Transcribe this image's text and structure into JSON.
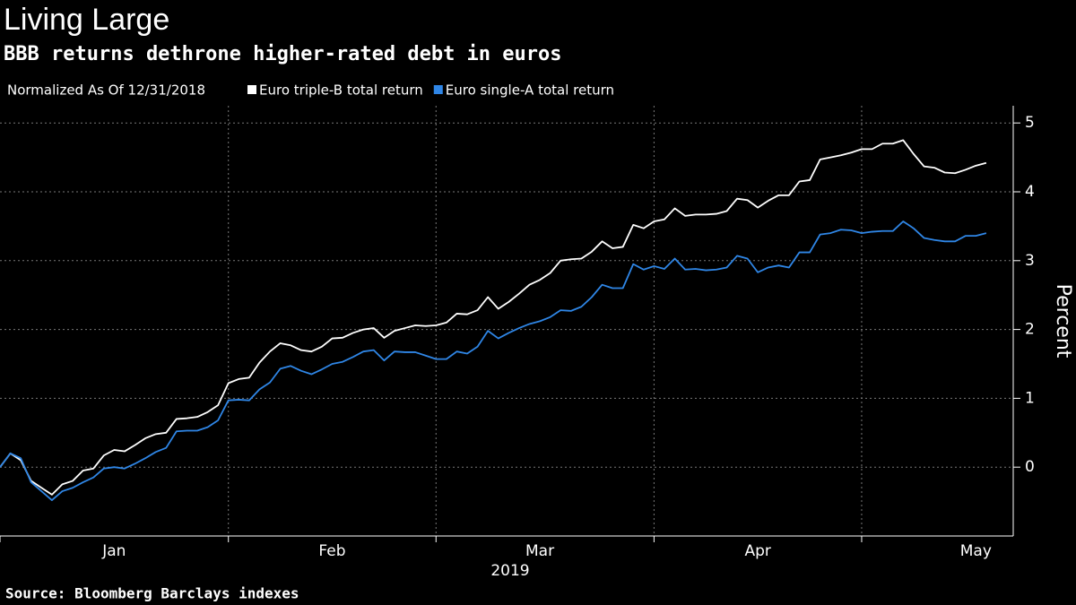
{
  "chart_data": {
    "type": "line",
    "title": "Living Large",
    "subtitle": "BBB returns dethrone higher-rated debt in euros",
    "legend_note": "Normalized As Of 12/31/2018",
    "ylabel": "Percent",
    "xlabel": "2019",
    "source": "Source: Bloomberg Barclays indexes",
    "categories": [
      null,
      null,
      null,
      null,
      null,
      null,
      null,
      null,
      null,
      null,
      null,
      "Jan",
      null,
      null,
      null,
      null,
      null,
      null,
      null,
      null,
      null,
      null,
      null,
      null,
      null,
      null,
      null,
      null,
      null,
      null,
      null,
      null,
      "Feb",
      null,
      null,
      null,
      null,
      null,
      null,
      null,
      null,
      null,
      null,
      null,
      null,
      null,
      null,
      null,
      null,
      null,
      null,
      null,
      "Mar",
      null,
      null,
      null,
      null,
      null,
      null,
      null,
      null,
      null,
      null,
      null,
      null,
      null,
      null,
      null,
      null,
      null,
      null,
      null,
      null,
      "Apr",
      null,
      null,
      null,
      null,
      null,
      null,
      null,
      null,
      null,
      null,
      null,
      null,
      null,
      null,
      null,
      null,
      null,
      null,
      null,
      null,
      "May",
      null
    ],
    "series": [
      {
        "name": "Euro triple-B total return",
        "color": "#ffffff",
        "values": [
          0,
          0.2,
          0.1,
          -0.2,
          -0.3,
          -0.4,
          -0.25,
          -0.2,
          -0.05,
          -0.02,
          0.17,
          0.25,
          0.23,
          0.32,
          0.42,
          0.48,
          0.5,
          0.7,
          0.71,
          0.73,
          0.8,
          0.9,
          1.22,
          1.28,
          1.3,
          1.52,
          1.68,
          1.8,
          1.77,
          1.7,
          1.68,
          1.75,
          1.87,
          1.88,
          1.95,
          2.0,
          2.02,
          1.88,
          1.98,
          2.02,
          2.06,
          2.05,
          2.06,
          2.1,
          2.23,
          2.22,
          2.28,
          2.47,
          2.3,
          2.4,
          2.52,
          2.65,
          2.72,
          2.82,
          3.0,
          3.02,
          3.03,
          3.13,
          3.28,
          3.18,
          3.2,
          3.52,
          3.47,
          3.57,
          3.6,
          3.76,
          3.65,
          3.67,
          3.67,
          3.68,
          3.72,
          3.9,
          3.88,
          3.77,
          3.87,
          3.95,
          3.95,
          4.15,
          4.17,
          4.47,
          4.5,
          4.53,
          4.57,
          4.62,
          4.62,
          4.7,
          4.7,
          4.75,
          4.55,
          4.37,
          4.35,
          4.28,
          4.27,
          4.32,
          4.38,
          4.42
        ]
      },
      {
        "name": "Euro single-A total return",
        "color": "#2f86e6",
        "values": [
          0,
          0.2,
          0.13,
          -0.22,
          -0.35,
          -0.48,
          -0.35,
          -0.3,
          -0.22,
          -0.15,
          -0.02,
          0.0,
          -0.02,
          0.05,
          0.13,
          0.22,
          0.28,
          0.52,
          0.53,
          0.53,
          0.58,
          0.68,
          0.97,
          0.98,
          0.97,
          1.13,
          1.23,
          1.43,
          1.47,
          1.4,
          1.35,
          1.42,
          1.5,
          1.53,
          1.6,
          1.68,
          1.7,
          1.55,
          1.68,
          1.67,
          1.67,
          1.62,
          1.57,
          1.57,
          1.68,
          1.65,
          1.75,
          1.98,
          1.87,
          1.95,
          2.02,
          2.08,
          2.12,
          2.18,
          2.28,
          2.27,
          2.33,
          2.47,
          2.65,
          2.6,
          2.6,
          2.95,
          2.87,
          2.92,
          2.88,
          3.03,
          2.87,
          2.88,
          2.86,
          2.87,
          2.9,
          3.07,
          3.03,
          2.83,
          2.9,
          2.93,
          2.9,
          3.12,
          3.12,
          3.38,
          3.4,
          3.45,
          3.44,
          3.4,
          3.42,
          3.43,
          3.43,
          3.57,
          3.47,
          3.33,
          3.3,
          3.28,
          3.28,
          3.36,
          3.36,
          3.4
        ]
      }
    ],
    "xlim": [
      0,
      97.6
    ],
    "xticks": [
      0,
      22,
      42,
      63,
      83
    ],
    "ylim": [
      -1,
      5.25
    ],
    "yticks": [
      0,
      1,
      2,
      3,
      4,
      5
    ],
    "grid": true
  }
}
